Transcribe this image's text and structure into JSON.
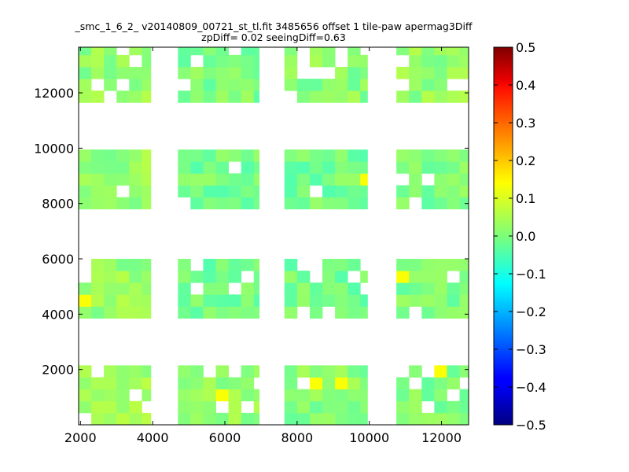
{
  "chart_data": {
    "type": "heatmap",
    "title_lines": [
      "_smc_1_6_2_ v20140809_00721_st_tl.fit 3485656 offset 1 tile-paw apermag3Diff",
      "zpDiff= 0.02 seeingDiff=0.63"
    ],
    "xlabel": "",
    "ylabel": "",
    "xlim": [
      1950,
      12750
    ],
    "ylim": [
      0,
      13650
    ],
    "x_ticks": [
      2000,
      4000,
      6000,
      8000,
      10000,
      12000
    ],
    "y_ticks": [
      2000,
      4000,
      6000,
      8000,
      10000,
      12000
    ],
    "cell_size": [
      350,
      430
    ],
    "colormap": "jet",
    "colorbar": {
      "range": [
        -0.5,
        0.5
      ],
      "ticks": [
        0.5,
        0.4,
        0.3,
        0.2,
        0.1,
        0.0,
        -0.1,
        -0.2,
        -0.3,
        -0.4,
        -0.5
      ],
      "tick_labels": [
        "0.5",
        "0.4",
        "0.3",
        "0.2",
        "0.1",
        "0.0",
        "−0.1",
        "−0.2",
        "−0.3",
        "−0.4",
        "−0.5"
      ]
    },
    "chips": [
      {
        "x": [
          1950,
          3950
        ],
        "y": [
          0,
          2150
        ],
        "mean": 0.03
      },
      {
        "x": [
          4700,
          6950
        ],
        "y": [
          0,
          2150
        ],
        "mean": 0.02
      },
      {
        "x": [
          7650,
          9950
        ],
        "y": [
          0,
          2150
        ],
        "mean": 0.01
      },
      {
        "x": [
          10750,
          12750
        ],
        "y": [
          0,
          2150
        ],
        "mean": 0.0
      },
      {
        "x": [
          1950,
          3950
        ],
        "y": [
          3850,
          6000
        ],
        "mean": 0.02
      },
      {
        "x": [
          4700,
          6950
        ],
        "y": [
          3850,
          6000
        ],
        "mean": -0.01
      },
      {
        "x": [
          7650,
          9950
        ],
        "y": [
          3850,
          6000
        ],
        "mean": -0.01
      },
      {
        "x": [
          10750,
          12750
        ],
        "y": [
          3850,
          6000
        ],
        "mean": 0.0
      },
      {
        "x": [
          1950,
          3950
        ],
        "y": [
          7800,
          9950
        ],
        "mean": 0.02
      },
      {
        "x": [
          4700,
          6950
        ],
        "y": [
          7800,
          9950
        ],
        "mean": -0.01
      },
      {
        "x": [
          7650,
          9950
        ],
        "y": [
          7800,
          9950
        ],
        "mean": -0.01
      },
      {
        "x": [
          10750,
          12750
        ],
        "y": [
          7800,
          9950
        ],
        "mean": 0.0
      },
      {
        "x": [
          1950,
          3950
        ],
        "y": [
          11650,
          13650
        ],
        "mean": 0.02
      },
      {
        "x": [
          4700,
          6950
        ],
        "y": [
          11650,
          13650
        ],
        "mean": 0.0
      },
      {
        "x": [
          7650,
          9950
        ],
        "y": [
          11650,
          13650
        ],
        "mean": 0.01
      },
      {
        "x": [
          10750,
          12750
        ],
        "y": [
          11650,
          13650
        ],
        "mean": 0.02
      }
    ]
  }
}
